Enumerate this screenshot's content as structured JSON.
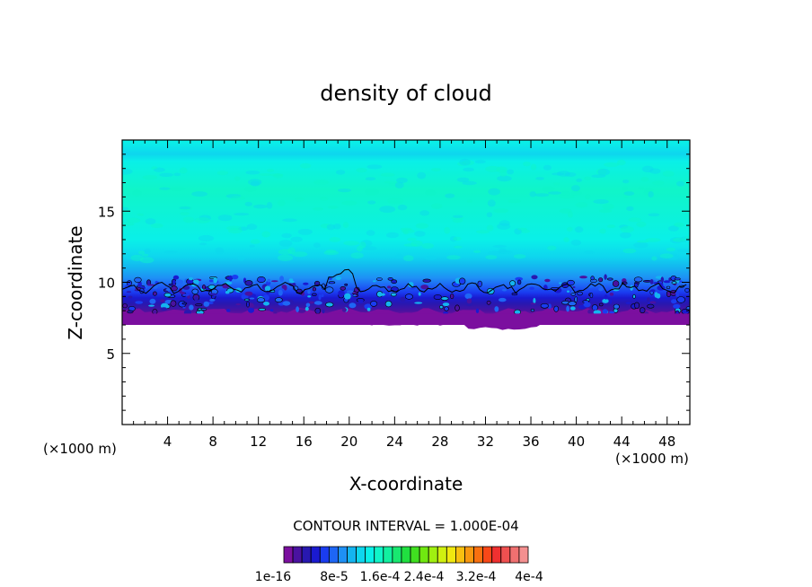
{
  "chart_data": {
    "type": "contour",
    "title": "density of cloud",
    "xlabel": "X-coordinate",
    "ylabel": "Z-coordinate",
    "x_unit": "(×1000 m)",
    "z_unit": "(×1000 m)",
    "xlim": [
      0,
      50
    ],
    "zlim": [
      0,
      20
    ],
    "x_ticks": [
      "4",
      "8",
      "12",
      "16",
      "20",
      "24",
      "28",
      "32",
      "36",
      "40",
      "44",
      "48"
    ],
    "z_ticks": [
      "5",
      "10",
      "15"
    ],
    "contour_interval_text": "CONTOUR INTERVAL = 1.000E-04",
    "colorbar_labels": [
      "1e-16",
      "8e-5",
      "1.6e-4",
      "2.4e-4",
      "3.2e-4",
      "4e-4"
    ],
    "colorbar_colors": [
      "#7b0f9f",
      "#4a12a0",
      "#2818b0",
      "#1a1ad0",
      "#1a3cf0",
      "#1e66f5",
      "#1e90f5",
      "#14b4f0",
      "#0ed6ee",
      "#0af0e8",
      "#10f5c8",
      "#12f0a0",
      "#18e870",
      "#20e040",
      "#40e020",
      "#70e810",
      "#a0f010",
      "#d0f010",
      "#f0e810",
      "#f8c010",
      "#f89810",
      "#f87010",
      "#f84818",
      "#f03030",
      "#f05050",
      "#f07070",
      "#f49090"
    ],
    "field_profile": [
      {
        "z": 19.9,
        "color": "#0af0e8"
      },
      {
        "z": 19.0,
        "color": "#0ed6ee"
      },
      {
        "z": 18.5,
        "color": "#0af0e8"
      },
      {
        "z": 16.5,
        "color": "#10f5c8"
      },
      {
        "z": 13.0,
        "color": "#0af0e8"
      },
      {
        "z": 11.8,
        "color": "#0ed6ee"
      },
      {
        "z": 11.0,
        "color": "#14b4f0"
      },
      {
        "z": 10.3,
        "color": "#1e90f5"
      },
      {
        "z": 9.8,
        "color": "#1e66f5"
      },
      {
        "z": 9.3,
        "color": "#1a3cf0"
      },
      {
        "z": 8.9,
        "color": "#1a1ad0"
      },
      {
        "z": 8.5,
        "color": "#2818b0"
      },
      {
        "z": 8.0,
        "color": "#4a12a0"
      },
      {
        "z": 7.6,
        "color": "#7b0f9f"
      }
    ],
    "cloud_base_z": 7.1,
    "contour_line_z": 9.6
  }
}
